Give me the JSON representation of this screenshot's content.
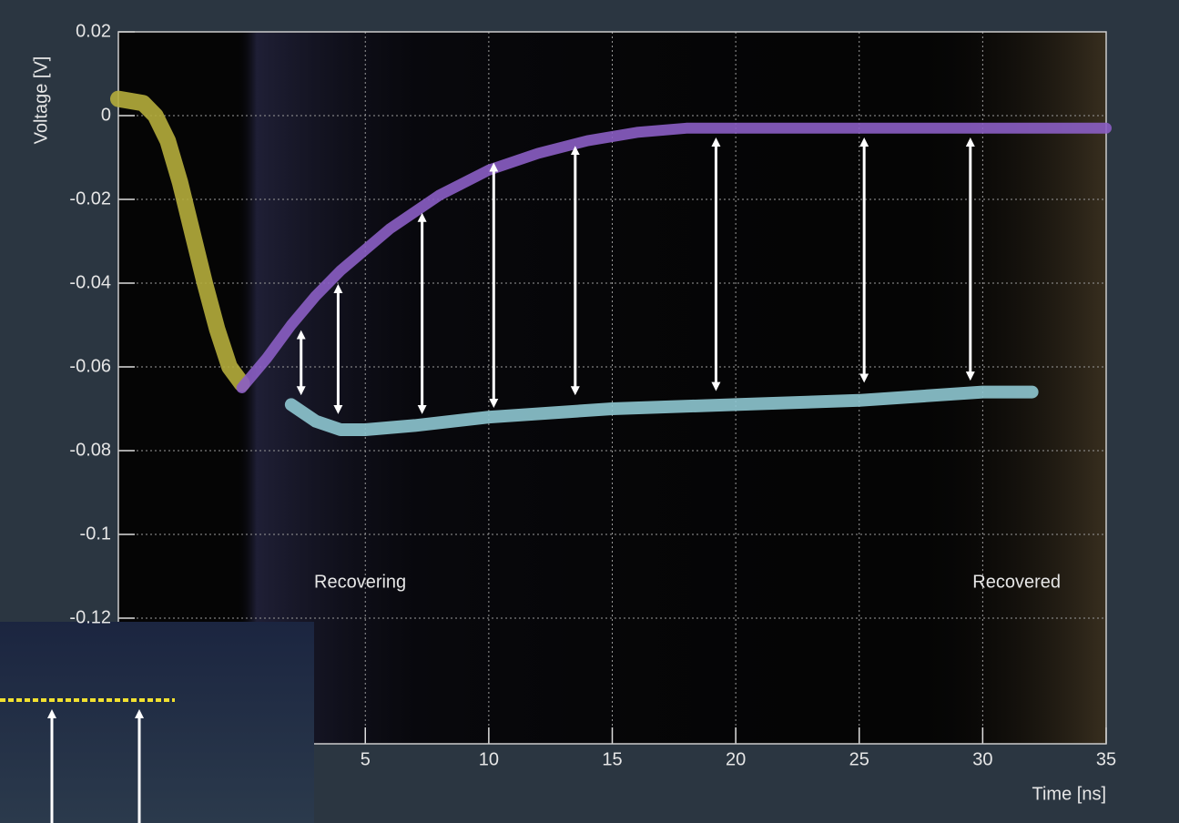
{
  "chart_data": {
    "type": "line",
    "xlabel": "Time [ns]",
    "ylabel": "Voltage [V]",
    "xlim": [
      -5,
      35
    ],
    "ylim": [
      -0.15,
      0.02
    ],
    "xticks": [
      5,
      10,
      15,
      20,
      25,
      30,
      35
    ],
    "yticks": [
      0.02,
      0,
      -0.02,
      -0.04,
      -0.06,
      -0.08,
      -0.1,
      -0.12
    ],
    "grid": true,
    "series": [
      {
        "color": "#b5ad3c",
        "width": 18,
        "x": [
          -5,
          -4,
          -3.5,
          -3,
          -2.5,
          -2,
          -1.5,
          -1,
          -0.5,
          0
        ],
        "values": [
          0.004,
          0.003,
          0.0,
          -0.006,
          -0.016,
          -0.028,
          -0.04,
          -0.051,
          -0.06,
          -0.064
        ]
      },
      {
        "color": "#8b5ec4",
        "width": 12,
        "x": [
          0,
          1,
          2,
          3,
          4,
          5,
          6,
          8,
          10,
          12,
          14,
          16,
          18,
          20,
          25,
          30,
          35
        ],
        "values": [
          -0.065,
          -0.058,
          -0.05,
          -0.043,
          -0.037,
          -0.032,
          -0.027,
          -0.019,
          -0.013,
          -0.009,
          -0.006,
          -0.004,
          -0.003,
          -0.003,
          -0.003,
          -0.003,
          -0.003
        ]
      },
      {
        "color": "#8ec6d0",
        "width": 14,
        "x": [
          2,
          3,
          4,
          5,
          7,
          10,
          15,
          20,
          25,
          30,
          32
        ],
        "values": [
          -0.069,
          -0.073,
          -0.075,
          -0.075,
          -0.074,
          -0.072,
          -0.07,
          -0.069,
          -0.068,
          -0.066,
          -0.066
        ]
      }
    ],
    "arrows": [
      {
        "x": 2.4,
        "y_top": -0.051,
        "y_bottom": -0.067
      },
      {
        "x": 3.9,
        "y_top": -0.04,
        "y_bottom": -0.0715
      },
      {
        "x": 7.3,
        "y_top": -0.023,
        "y_bottom": -0.0715
      },
      {
        "x": 10.2,
        "y_top": -0.011,
        "y_bottom": -0.07
      },
      {
        "x": 13.5,
        "y_top": -0.007,
        "y_bottom": -0.067
      },
      {
        "x": 19.2,
        "y_top": -0.005,
        "y_bottom": -0.066
      },
      {
        "x": 25.2,
        "y_top": -0.005,
        "y_bottom": -0.064
      },
      {
        "x": 29.5,
        "y_top": -0.005,
        "y_bottom": -0.0635
      }
    ],
    "annotations": [
      {
        "text": "Recovering",
        "color": "#8fcfe4"
      },
      {
        "text": "Recovered",
        "color": "#f3efc8"
      }
    ]
  }
}
